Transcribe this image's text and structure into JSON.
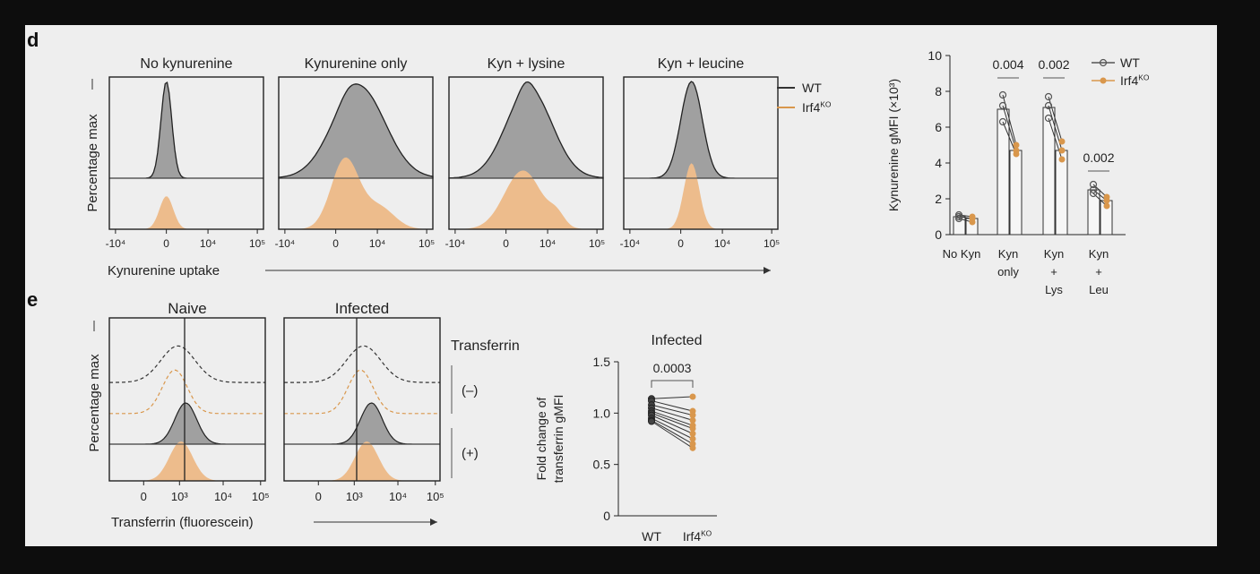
{
  "panel_letters": {
    "d": "d",
    "e": "e"
  },
  "colors": {
    "wt": "#555555",
    "ko": "#d9974c",
    "wt_fill": "#a0a0a0",
    "ko_fill": "#edbc8c",
    "panel_bg": "#eeeeee"
  },
  "panel_d": {
    "titles": [
      "No kynurenine",
      "Kynurenine only",
      "Kyn + lysine",
      "Kyn + leucine"
    ],
    "ylabel": "Percentage max",
    "xlabel": "Kynurenine uptake",
    "xticks": [
      "-10⁴",
      "0",
      "10⁴",
      "10⁵"
    ],
    "legend": [
      "WT",
      "Irf4KO"
    ]
  },
  "panel_e": {
    "titles": [
      "Naive",
      "Infected"
    ],
    "ylabel": "Percentage max",
    "xlabel": "Transferrin (fluorescein)",
    "xticks": [
      "0",
      "10³",
      "10⁴",
      "10⁵"
    ],
    "transferrin_label": "Transferrin",
    "minus_label": "(–)",
    "plus_label": "(+)"
  },
  "chart_data": [
    {
      "type": "bar",
      "ylabel": "Kynurenine gMFI (×10³)",
      "ylim": [
        0,
        10
      ],
      "yticks": [
        0,
        2,
        4,
        6,
        8,
        10
      ],
      "categories": [
        "No Kyn",
        "Kyn only",
        "Kyn + Lys",
        "Kyn + Leu"
      ],
      "category_lines": [
        [
          "No Kyn"
        ],
        [
          "Kyn",
          "only"
        ],
        [
          "Kyn",
          "+",
          "Lys"
        ],
        [
          "Kyn",
          "+",
          "Leu"
        ]
      ],
      "series": [
        {
          "name": "WT",
          "values": [
            1.0,
            7.0,
            7.1,
            2.5
          ],
          "points": [
            [
              0.9,
              1.0,
              1.1
            ],
            [
              6.3,
              7.2,
              7.8
            ],
            [
              6.5,
              7.2,
              7.7
            ],
            [
              2.3,
              2.5,
              2.8
            ]
          ]
        },
        {
          "name": "Irf4KO",
          "values": [
            0.9,
            4.7,
            4.7,
            1.9
          ],
          "points": [
            [
              0.7,
              0.9,
              1.0
            ],
            [
              4.5,
              4.7,
              5.0
            ],
            [
              4.2,
              4.7,
              5.2
            ],
            [
              1.6,
              1.9,
              2.1
            ]
          ]
        }
      ],
      "pvalues": [
        {
          "label": "0.004",
          "category": 1
        },
        {
          "label": "0.002",
          "category": 2
        },
        {
          "label": "0.002",
          "category": 3
        }
      ],
      "legend": {
        "position": "top-right",
        "entries": [
          "WT",
          "Irf4KO"
        ]
      }
    },
    {
      "type": "scatter",
      "title": "Infected",
      "ylabel": "Fold change of transferrin gMFI",
      "ylim": [
        0,
        1.5
      ],
      "yticks": [
        0,
        0.5,
        1.0,
        1.5
      ],
      "ytick_labels": [
        "0",
        "0.5",
        "1.0",
        "1.5"
      ],
      "categories": [
        "WT",
        "Irf4KO"
      ],
      "pairs": [
        [
          1.14,
          1.16
        ],
        [
          1.12,
          1.02
        ],
        [
          1.08,
          0.98
        ],
        [
          1.05,
          0.93
        ],
        [
          1.02,
          0.88
        ],
        [
          1.0,
          0.85
        ],
        [
          0.98,
          0.8
        ],
        [
          0.95,
          0.75
        ],
        [
          0.93,
          0.7
        ],
        [
          0.92,
          0.66
        ]
      ],
      "pvalue": "0.0003"
    }
  ]
}
